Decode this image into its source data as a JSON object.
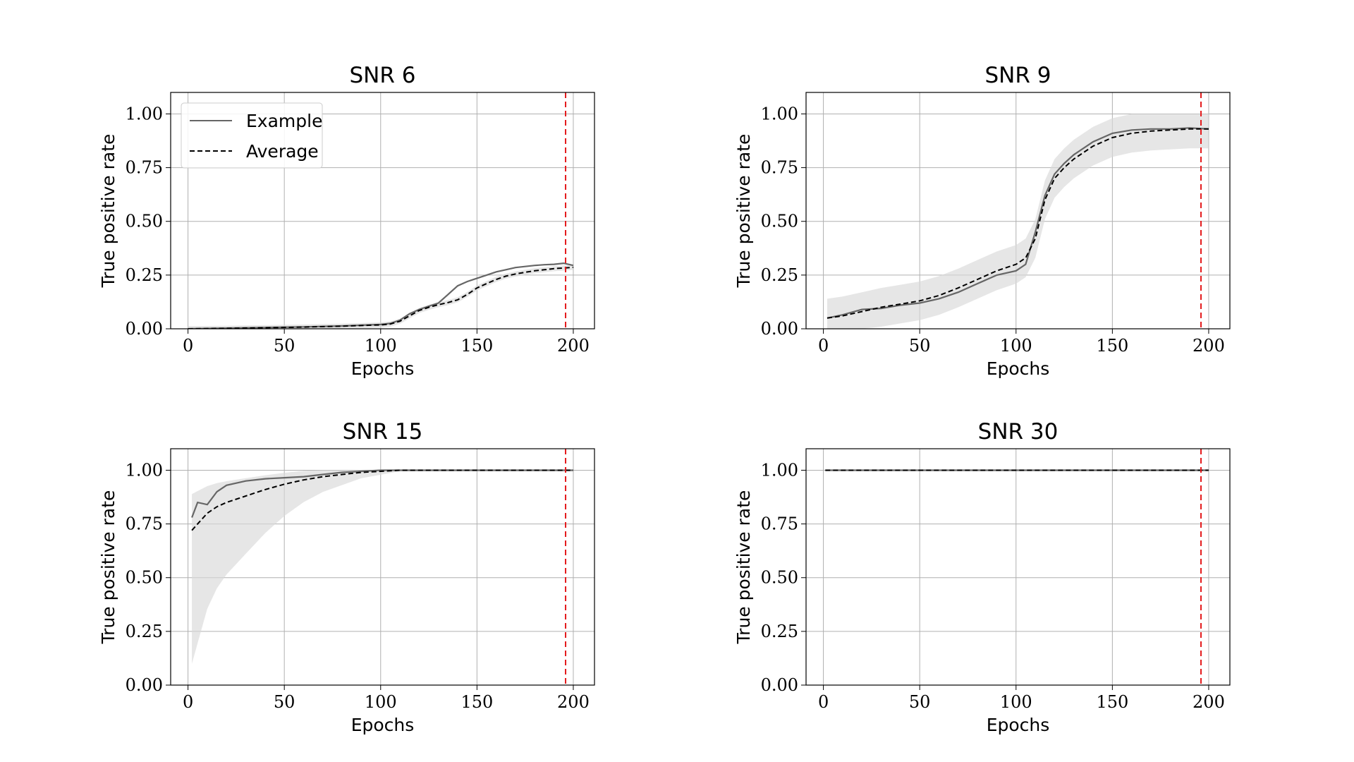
{
  "chart_data": [
    {
      "type": "line",
      "title": "SNR 6",
      "xlabel": "Epochs",
      "ylabel": "True positive rate",
      "xlim": [
        -9,
        211
      ],
      "ylim": [
        0,
        1.1
      ],
      "xticks": [
        0,
        50,
        100,
        150,
        200
      ],
      "xtick_labels": [
        "0",
        "50",
        "100",
        "150",
        "200"
      ],
      "yticks": [
        0,
        0.25,
        0.5,
        0.75,
        1.0
      ],
      "ytick_labels": [
        "0.00",
        "0.25",
        "0.50",
        "0.75",
        "1.00"
      ],
      "grid": true,
      "legend": {
        "position": "upper-left",
        "entries": [
          "Example",
          "Average"
        ]
      },
      "vline": {
        "x": 196,
        "color": "#e41a1c",
        "style": "dashed"
      },
      "series": [
        {
          "name": "Average",
          "style": "dashed",
          "color": "#000000",
          "x": [
            0,
            20,
            40,
            60,
            80,
            100,
            105,
            110,
            115,
            120,
            125,
            130,
            135,
            140,
            145,
            150,
            155,
            160,
            165,
            170,
            175,
            180,
            185,
            190,
            195,
            200
          ],
          "y": [
            0.0,
            0.002,
            0.005,
            0.008,
            0.012,
            0.018,
            0.022,
            0.035,
            0.06,
            0.085,
            0.1,
            0.112,
            0.122,
            0.135,
            0.16,
            0.19,
            0.21,
            0.23,
            0.245,
            0.255,
            0.263,
            0.27,
            0.275,
            0.28,
            0.283,
            0.286
          ]
        },
        {
          "name": "Example",
          "style": "solid",
          "color": "#666666",
          "x": [
            0,
            20,
            40,
            60,
            80,
            100,
            105,
            110,
            115,
            120,
            125,
            130,
            135,
            140,
            145,
            150,
            155,
            160,
            165,
            170,
            175,
            180,
            185,
            190,
            195,
            200
          ],
          "y": [
            0.0,
            0.003,
            0.006,
            0.009,
            0.013,
            0.02,
            0.025,
            0.04,
            0.07,
            0.09,
            0.105,
            0.12,
            0.16,
            0.2,
            0.22,
            0.235,
            0.25,
            0.265,
            0.275,
            0.285,
            0.29,
            0.295,
            0.298,
            0.3,
            0.305,
            0.295
          ]
        }
      ]
    },
    {
      "type": "line",
      "title": "SNR 9",
      "xlabel": "Epochs",
      "ylabel": "True positive rate",
      "xlim": [
        -9,
        211
      ],
      "ylim": [
        0,
        1.1
      ],
      "xticks": [
        0,
        50,
        100,
        150,
        200
      ],
      "xtick_labels": [
        "0",
        "50",
        "100",
        "150",
        "200"
      ],
      "yticks": [
        0,
        0.25,
        0.5,
        0.75,
        1.0
      ],
      "ytick_labels": [
        "0.00",
        "0.25",
        "0.50",
        "0.75",
        "1.00"
      ],
      "grid": true,
      "vline": {
        "x": 196,
        "color": "#e41a1c",
        "style": "dashed"
      },
      "series": [
        {
          "name": "Average",
          "style": "dashed",
          "color": "#000000",
          "x": [
            2,
            10,
            20,
            30,
            40,
            50,
            60,
            70,
            80,
            90,
            100,
            105,
            110,
            115,
            120,
            125,
            130,
            140,
            150,
            160,
            170,
            180,
            190,
            200
          ],
          "y": [
            0.05,
            0.06,
            0.08,
            0.1,
            0.115,
            0.13,
            0.155,
            0.19,
            0.23,
            0.27,
            0.3,
            0.33,
            0.42,
            0.6,
            0.7,
            0.75,
            0.79,
            0.85,
            0.89,
            0.91,
            0.92,
            0.925,
            0.93,
            0.93
          ]
        },
        {
          "name": "Example",
          "style": "solid",
          "color": "#666666",
          "x": [
            2,
            10,
            20,
            30,
            40,
            50,
            60,
            70,
            80,
            90,
            100,
            105,
            110,
            115,
            120,
            125,
            130,
            140,
            150,
            160,
            170,
            180,
            190,
            200
          ],
          "y": [
            0.05,
            0.065,
            0.09,
            0.095,
            0.11,
            0.12,
            0.14,
            0.17,
            0.21,
            0.25,
            0.27,
            0.3,
            0.45,
            0.62,
            0.72,
            0.77,
            0.81,
            0.87,
            0.91,
            0.925,
            0.93,
            0.93,
            0.935,
            0.93
          ]
        }
      ]
    },
    {
      "type": "line",
      "title": "SNR 15",
      "xlabel": "Epochs",
      "ylabel": "True positive rate",
      "xlim": [
        -9,
        211
      ],
      "ylim": [
        0,
        1.1
      ],
      "xticks": [
        0,
        50,
        100,
        150,
        200
      ],
      "xtick_labels": [
        "0",
        "50",
        "100",
        "150",
        "200"
      ],
      "yticks": [
        0,
        0.25,
        0.5,
        0.75,
        1.0
      ],
      "ytick_labels": [
        "0.00",
        "0.25",
        "0.50",
        "0.75",
        "1.00"
      ],
      "grid": true,
      "vline": {
        "x": 196,
        "color": "#e41a1c",
        "style": "dashed"
      },
      "series": [
        {
          "name": "Average",
          "style": "dashed",
          "color": "#000000",
          "x": [
            2,
            5,
            10,
            15,
            20,
            30,
            40,
            50,
            60,
            70,
            80,
            90,
            100,
            110,
            120,
            150,
            200
          ],
          "y": [
            0.72,
            0.75,
            0.8,
            0.83,
            0.85,
            0.88,
            0.91,
            0.935,
            0.955,
            0.97,
            0.98,
            0.99,
            0.995,
            1.0,
            1.0,
            1.0,
            1.0
          ]
        },
        {
          "name": "Example",
          "style": "solid",
          "color": "#666666",
          "x": [
            2,
            5,
            10,
            15,
            20,
            30,
            40,
            50,
            60,
            70,
            80,
            90,
            100,
            110,
            120,
            150,
            200
          ],
          "y": [
            0.78,
            0.85,
            0.84,
            0.9,
            0.93,
            0.95,
            0.96,
            0.965,
            0.97,
            0.98,
            0.99,
            0.995,
            1.0,
            1.0,
            1.0,
            1.0,
            1.0
          ]
        }
      ]
    },
    {
      "type": "line",
      "title": "SNR 30",
      "xlabel": "Epochs",
      "ylabel": "True positive rate",
      "xlim": [
        -9,
        211
      ],
      "ylim": [
        0,
        1.1
      ],
      "xticks": [
        0,
        50,
        100,
        150,
        200
      ],
      "xtick_labels": [
        "0",
        "50",
        "100",
        "150",
        "200"
      ],
      "yticks": [
        0,
        0.25,
        0.5,
        0.75,
        1.0
      ],
      "ytick_labels": [
        "0.00",
        "0.25",
        "0.50",
        "0.75",
        "1.00"
      ],
      "grid": true,
      "vline": {
        "x": 196,
        "color": "#e41a1c",
        "style": "dashed"
      },
      "series": [
        {
          "name": "Average",
          "style": "dashed",
          "color": "#000000",
          "x": [
            1,
            200
          ],
          "y": [
            1.0,
            1.0
          ]
        },
        {
          "name": "Example",
          "style": "solid",
          "color": "#666666",
          "x": [
            1,
            200
          ],
          "y": [
            1.0,
            1.0
          ]
        }
      ]
    }
  ]
}
